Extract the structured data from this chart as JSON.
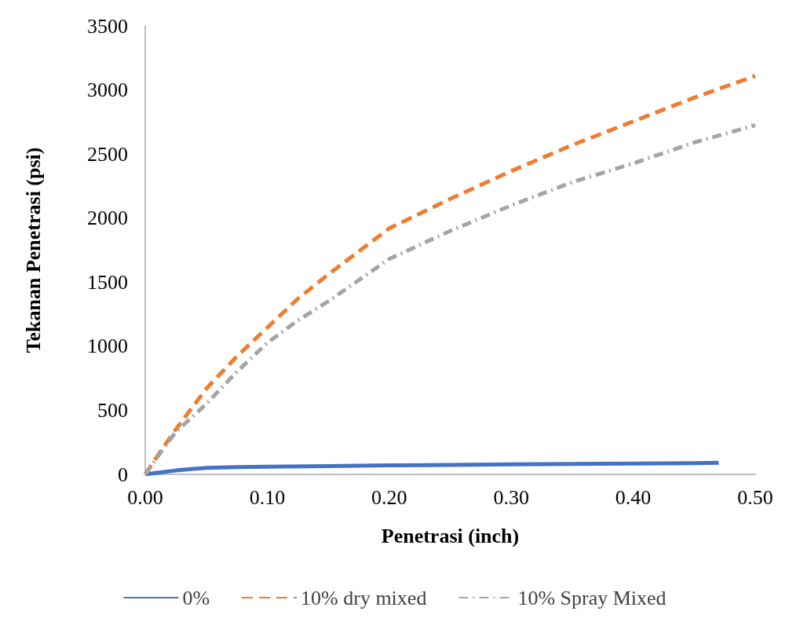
{
  "chart_data": {
    "type": "line",
    "xlabel": "Penetrasi (inch)",
    "ylabel": "Tekanan Penetrasi (psi)",
    "xlim": [
      0,
      0.5
    ],
    "xticks": [
      {
        "value": 0,
        "label": "0.00"
      },
      {
        "value": 0.1,
        "label": "0.10"
      },
      {
        "value": 0.2,
        "label": "0.20"
      },
      {
        "value": 0.3,
        "label": "0.30"
      },
      {
        "value": 0.4,
        "label": "0.40"
      },
      {
        "value": 0.5,
        "label": "0.50"
      }
    ],
    "ylim": [
      0,
      3500
    ],
    "yticks": [
      0,
      500,
      1000,
      1500,
      2000,
      2500,
      3000,
      3500
    ],
    "grid": false,
    "legend": "bottom",
    "marker": "none",
    "series": [
      {
        "name": "0%",
        "color": "#4472c4",
        "line_style": "solid",
        "x": [
          0,
          0.0125,
          0.025,
          0.0375,
          0.05,
          0.075,
          0.1,
          0.15,
          0.2,
          0.25,
          0.3,
          0.35,
          0.4,
          0.45,
          0.47
        ],
        "values": [
          0,
          15,
          30,
          42,
          50,
          56,
          60,
          65,
          70,
          74,
          78,
          81,
          85,
          88,
          90
        ]
      },
      {
        "name": "10% dry mixed",
        "color": "#ed7d31",
        "line_style": "dashed",
        "x": [
          0,
          0.0125,
          0.025,
          0.05,
          0.075,
          0.1,
          0.125,
          0.15,
          0.2,
          0.25,
          0.3,
          0.35,
          0.4,
          0.45,
          0.5
        ],
        "values": [
          0,
          180,
          350,
          668,
          920,
          1145,
          1370,
          1560,
          1920,
          2150,
          2367,
          2570,
          2755,
          2940,
          3110
        ]
      },
      {
        "name": "10% Spray Mixed",
        "color": "#a5a5a5",
        "line_style": "dashdot",
        "x": [
          0,
          0.0125,
          0.025,
          0.05,
          0.075,
          0.1,
          0.125,
          0.15,
          0.2,
          0.25,
          0.3,
          0.35,
          0.4,
          0.45,
          0.5
        ],
        "values": [
          0,
          170,
          330,
          549,
          800,
          1026,
          1200,
          1350,
          1681,
          1900,
          2099,
          2280,
          2427,
          2590,
          2725
        ]
      }
    ]
  }
}
